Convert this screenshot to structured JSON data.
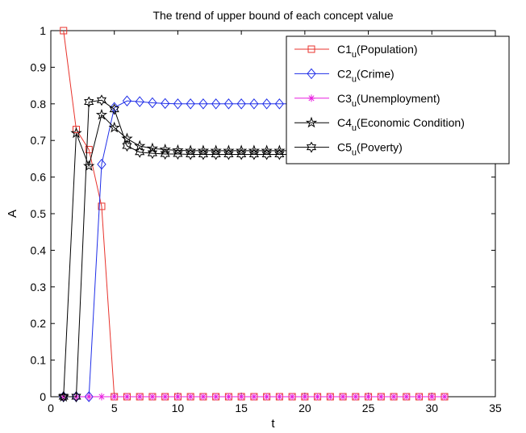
{
  "chart_data": {
    "type": "line",
    "title": "The trend of upper bound of each concept value",
    "xlabel": "t",
    "ylabel": "A",
    "xlim": [
      0,
      35
    ],
    "ylim": [
      0,
      1
    ],
    "x_ticks": [
      0,
      5,
      10,
      15,
      20,
      25,
      30,
      35
    ],
    "y_ticks": [
      0,
      0.1,
      0.2,
      0.3,
      0.4,
      0.5,
      0.6,
      0.7,
      0.8,
      0.9,
      1
    ],
    "grid": false,
    "legend_position": "top-right",
    "x": [
      1,
      2,
      3,
      4,
      5,
      6,
      7,
      8,
      9,
      10,
      11,
      12,
      13,
      14,
      15,
      16,
      17,
      18,
      19,
      20,
      21,
      22,
      23,
      24,
      25,
      26,
      27,
      28,
      29,
      30,
      31
    ],
    "series": [
      {
        "name": "C1",
        "sub": "u",
        "suffix": "(Population)",
        "color": "#e8332c",
        "marker": "square",
        "values": [
          1.0,
          0.73,
          0.675,
          0.52,
          0,
          0,
          0,
          0,
          0,
          0,
          0,
          0,
          0,
          0,
          0,
          0,
          0,
          0,
          0,
          0,
          0,
          0,
          0,
          0,
          0,
          0,
          0,
          0,
          0,
          0,
          0
        ]
      },
      {
        "name": "C2",
        "sub": "u",
        "suffix": "(Crime)",
        "color": "#1f2ee8",
        "marker": "diamond",
        "values": [
          0,
          0,
          0,
          0.635,
          0.79,
          0.808,
          0.806,
          0.803,
          0.801,
          0.8,
          0.8,
          0.8,
          0.8,
          0.8,
          0.8,
          0.8,
          0.8,
          0.8,
          0.8,
          0.8,
          0.8,
          0.8,
          0.8,
          0.8,
          0.8,
          0.8,
          0.8,
          0.8,
          0.8,
          0.8,
          0.8
        ]
      },
      {
        "name": "C3",
        "sub": "u",
        "suffix": "(Unemployment)",
        "color": "#e81ee0",
        "marker": "asterisk",
        "values": [
          0,
          0,
          0,
          0,
          0,
          0,
          0,
          0,
          0,
          0,
          0,
          0,
          0,
          0,
          0,
          0,
          0,
          0,
          0,
          0,
          0,
          0,
          0,
          0,
          0,
          0,
          0,
          0,
          0,
          0,
          0
        ]
      },
      {
        "name": "C4",
        "sub": "u",
        "suffix": "(Economic Condition)",
        "color": "#000000",
        "marker": "star",
        "values": [
          0,
          0.72,
          0.63,
          0.77,
          0.735,
          0.705,
          0.685,
          0.678,
          0.675,
          0.673,
          0.672,
          0.672,
          0.672,
          0.672,
          0.672,
          0.672,
          0.672,
          0.672,
          0.672,
          0.672,
          0.672,
          0.672,
          0.672,
          0.672,
          0.672,
          0.672,
          0.672,
          0.672,
          0.672,
          0.672,
          0.672
        ]
      },
      {
        "name": "C5",
        "sub": "u",
        "suffix": "(Poverty)",
        "color": "#000000",
        "marker": "hexagram",
        "values": [
          0,
          0,
          0.805,
          0.81,
          0.785,
          0.685,
          0.668,
          0.665,
          0.663,
          0.663,
          0.662,
          0.662,
          0.662,
          0.662,
          0.662,
          0.662,
          0.662,
          0.662,
          0.662,
          0.662,
          0.662,
          0.662,
          0.662,
          0.662,
          0.662,
          0.662,
          0.662,
          0.662,
          0.662,
          0.662,
          0.662
        ]
      }
    ]
  }
}
